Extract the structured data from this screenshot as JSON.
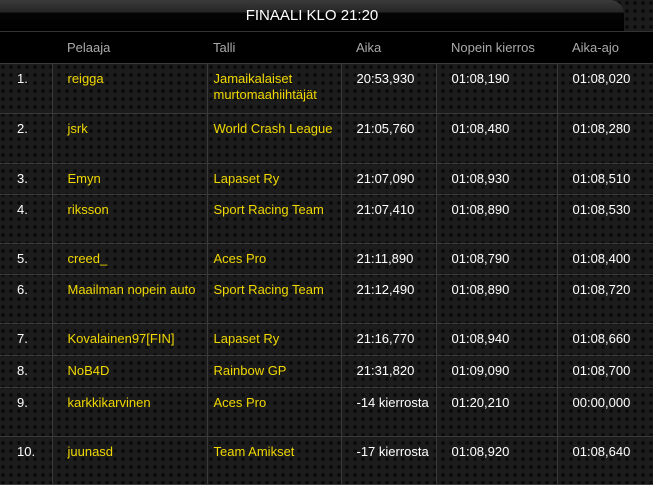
{
  "title": "FINAALI KLO 21:20",
  "headers": [
    "",
    "Pelaaja",
    "Talli",
    "Aika",
    "Nopein kierros",
    "Aika-ajo"
  ],
  "colors": {
    "accent": "#f0d800",
    "text": "#ffffff",
    "header": "#aaaaaa"
  },
  "rows": [
    {
      "pos": "1.",
      "player": "reigga",
      "team": "Jamaikalaiset murtomaahiihtäjät",
      "time": "20:53,930",
      "fastest": "01:08,190",
      "qualy": "01:08,020"
    },
    {
      "pos": "2.",
      "player": "jsrk",
      "team": "World Crash League",
      "time": "21:05,760",
      "fastest": "01:08,480",
      "qualy": "01:08,280"
    },
    {
      "pos": "3.",
      "player": "Emyn",
      "team": "Lapaset Ry",
      "time": "21:07,090",
      "fastest": "01:08,930",
      "qualy": "01:08,510"
    },
    {
      "pos": "4.",
      "player": "riksson",
      "team": "Sport Racing Team",
      "time": "21:07,410",
      "fastest": "01:08,890",
      "qualy": "01:08,530"
    },
    {
      "pos": "5.",
      "player": "creed_",
      "team": "Aces Pro",
      "time": "21:11,890",
      "fastest": "01:08,790",
      "qualy": "01:08,400"
    },
    {
      "pos": "6.",
      "player": "Maailman nopein auto",
      "team": "Sport Racing Team",
      "time": "21:12,490",
      "fastest": "01:08,890",
      "qualy": "01:08,720"
    },
    {
      "pos": "7.",
      "player": "Kovalainen97[FIN]",
      "team": "Lapaset Ry",
      "time": "21:16,770",
      "fastest": "01:08,940",
      "qualy": "01:08,660"
    },
    {
      "pos": "8.",
      "player": "NoB4D",
      "team": "Rainbow GP",
      "time": "21:31,820",
      "fastest": "01:09,090",
      "qualy": "01:08,700"
    },
    {
      "pos": "9.",
      "player": "karkkikarvinen",
      "team": "Aces Pro",
      "time": "-14 kierrosta",
      "fastest": "01:20,210",
      "qualy": "00:00,000"
    },
    {
      "pos": "10.",
      "player": "juunasd",
      "team": "Team Amikset",
      "time": "-17 kierrosta",
      "fastest": "01:08,920",
      "qualy": "01:08,640"
    }
  ]
}
